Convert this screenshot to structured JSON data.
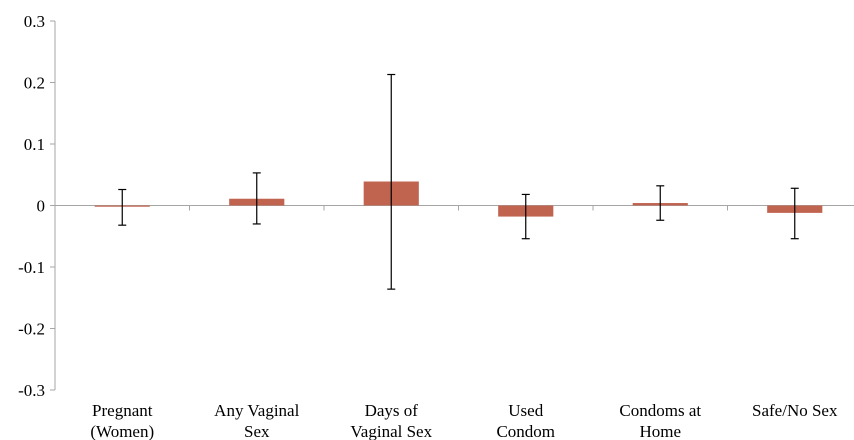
{
  "chart_data": {
    "type": "bar",
    "categories": [
      [
        "Pregnant",
        "(Women)"
      ],
      [
        "Any Vaginal",
        "Sex"
      ],
      [
        "Days of",
        "Vaginal Sex"
      ],
      [
        "Used",
        "Condom"
      ],
      [
        "Condoms at",
        "Home"
      ],
      [
        "Safe/No Sex"
      ]
    ],
    "values": [
      -0.002,
      0.011,
      0.039,
      -0.018,
      0.004,
      -0.012
    ],
    "error_low": [
      -0.032,
      -0.03,
      -0.136,
      -0.054,
      -0.024,
      -0.054
    ],
    "error_high": [
      0.026,
      0.053,
      0.213,
      0.018,
      0.032,
      0.028
    ],
    "ylim": [
      -0.3,
      0.3
    ],
    "yticks": [
      "-0.3",
      "-0.2",
      "-0.1",
      "0",
      "0.1",
      "0.2",
      "0.3"
    ],
    "title": "",
    "xlabel": "",
    "ylabel": "",
    "grid": false,
    "bar_color": "#c0634f",
    "axis_color": "#a6a6a6",
    "error_color": "#000000"
  }
}
